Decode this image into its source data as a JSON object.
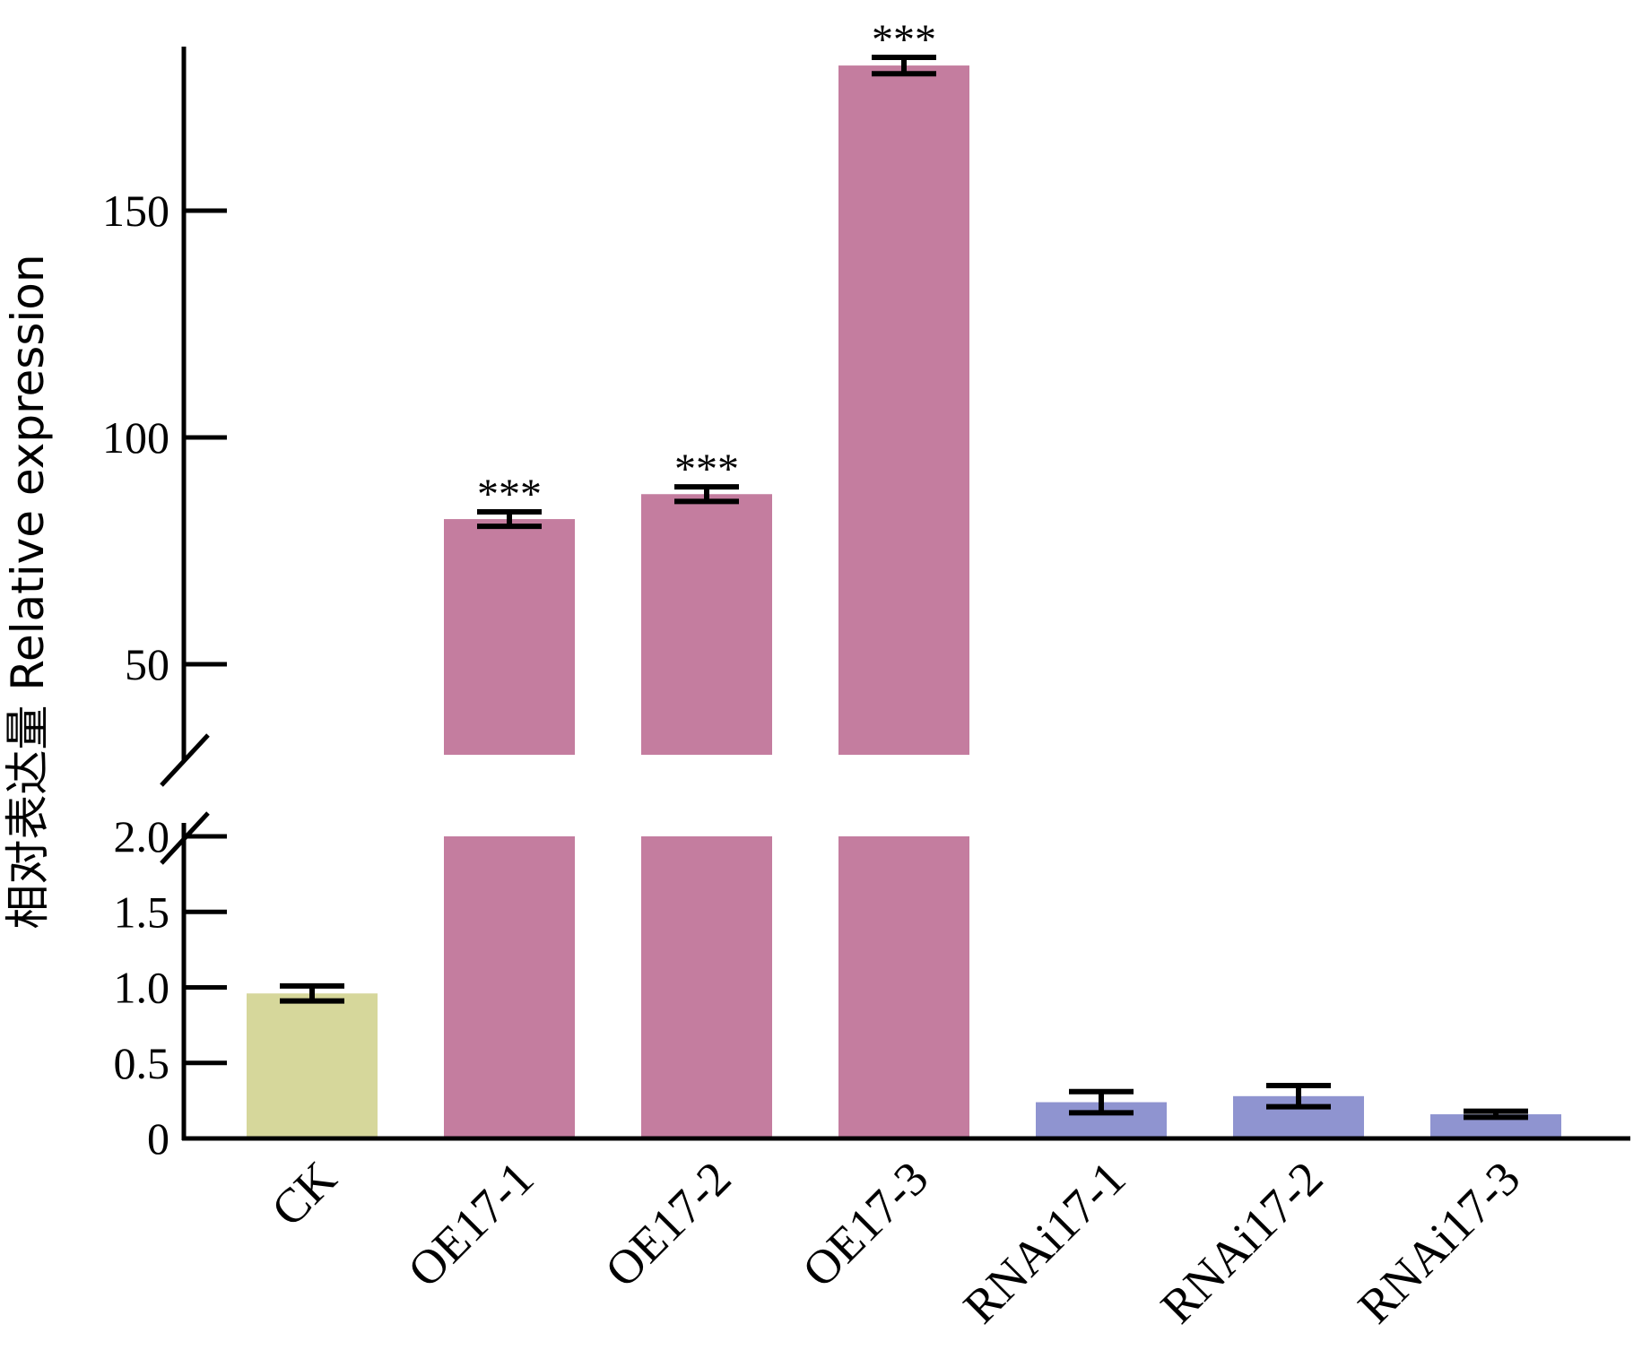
{
  "chart_data": {
    "type": "bar",
    "categories": [
      "CK",
      "OE17-1",
      "OE17-2",
      "OE17-3",
      "RNAi17-1",
      "RNAi17-2",
      "RNAi17-3"
    ],
    "values": [
      0.96,
      82,
      87.5,
      182,
      0.24,
      0.28,
      0.16
    ],
    "errors": [
      0.05,
      1.6,
      1.6,
      1.8,
      0.07,
      0.07,
      0.02
    ],
    "significance": [
      "",
      "***",
      "***",
      "***",
      "",
      "",
      ""
    ],
    "bar_colors": [
      "#d6d79b",
      "#c47d9f",
      "#c47d9f",
      "#c47d9f",
      "#8f94d0",
      "#8f94d0",
      "#8f94d0"
    ],
    "title": "",
    "xlabel": "",
    "ylabel": "相对表达量 Relative expression",
    "axis_break": true,
    "lower_ylim": [
      0,
      2.0
    ],
    "upper_ylim": [
      30,
      185
    ],
    "lower_ticks": [
      {
        "value": 0,
        "label": "0"
      },
      {
        "value": 0.5,
        "label": "0.5"
      },
      {
        "value": 1.0,
        "label": "1.0"
      },
      {
        "value": 1.5,
        "label": "1.5"
      },
      {
        "value": 2.0,
        "label": "2.0"
      }
    ],
    "upper_ticks": [
      {
        "value": 50,
        "label": "50"
      },
      {
        "value": 100,
        "label": "100"
      },
      {
        "value": 150,
        "label": "150"
      }
    ],
    "grid": false,
    "legend": "none"
  }
}
